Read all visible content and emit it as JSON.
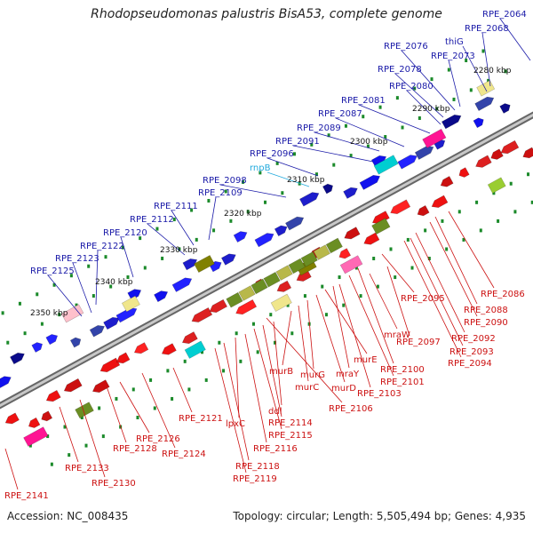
{
  "title": "Rhodopseudomonas palustris BisA53, complete genome",
  "footer": {
    "accession": "Accession: NC_008435",
    "topology": "Topology: circular; Length: 5,505,494 bp; Genes: 4,935"
  },
  "colors": {
    "forward_label": "#1a1aa8",
    "reverse_label": "#cc1111",
    "rna_label": "#22aadd",
    "tick_dot": "#1b8a2a",
    "backbone": "#999999"
  },
  "kbp_markers": [
    "2280 kbp",
    "2290 kbp",
    "2300 kbp",
    "2310 kbp",
    "2320 kbp",
    "2330 kbp",
    "2340 kbp",
    "2350 kbp"
  ],
  "forward_genes": [
    "RPE_2064",
    "RPE_2068",
    "thiG",
    "RPE_2073",
    "RPE_2076",
    "RPE_2078",
    "RPE_2080",
    "RPE_2081",
    "RPE_2087",
    "RPE_2089",
    "RPE_2091",
    "RPE_2096",
    "rnpB",
    "RPE_2098",
    "RPE_2109",
    "RPE_2111",
    "RPE_2112",
    "RPE_2120",
    "RPE_2122",
    "RPE_2123",
    "RPE_2125"
  ],
  "reverse_genes": [
    "RPE_2086",
    "RPE_2088",
    "RPE_2090",
    "RPE_2092",
    "RPE_2093",
    "RPE_2094",
    "RPE_2095",
    "RPE_2097",
    "mraW",
    "RPE_2100",
    "RPE_2101",
    "RPE_2103",
    "mraY",
    "murE",
    "murD",
    "murG",
    "murC",
    "murB",
    "RPE_2106",
    "ddl",
    "RPE_2114",
    "RPE_2115",
    "RPE_2116",
    "lpxC",
    "RPE_2118",
    "RPE_2119",
    "RPE_2121",
    "RPE_2124",
    "RPE_2126",
    "RPE_2128",
    "RPE_2130",
    "RPE_2133",
    "RPE_2141"
  ]
}
